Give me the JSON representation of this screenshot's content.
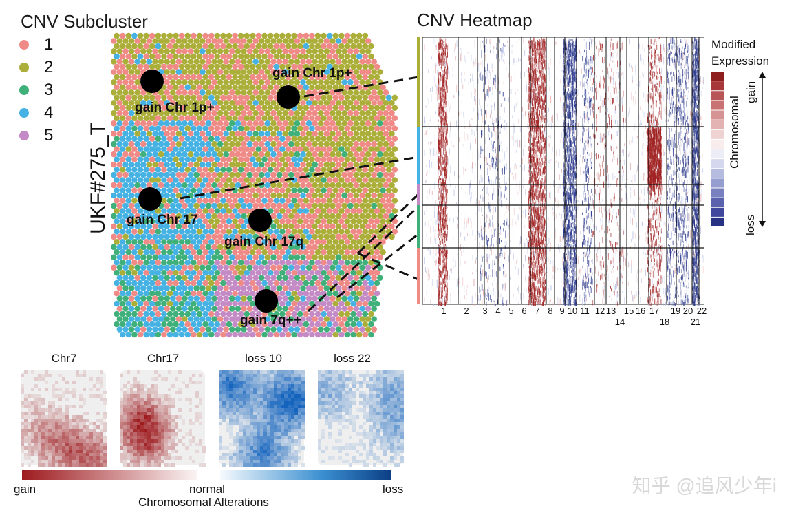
{
  "subcluster_panel": {
    "title": "CNV Subcluster",
    "sample_id": "UKF#275_T",
    "legend": [
      {
        "label": "1",
        "color": "#ef8a87"
      },
      {
        "label": "2",
        "color": "#abaf3a"
      },
      {
        "label": "3",
        "color": "#3fb07a"
      },
      {
        "label": "4",
        "color": "#45b2e3"
      },
      {
        "label": "5",
        "color": "#c48ac5"
      }
    ],
    "annotations": [
      {
        "id": "a1",
        "label": "gain Chr 1p+"
      },
      {
        "id": "a2",
        "label": "gain Chr 1p+"
      },
      {
        "id": "a3",
        "label": "gain Chr 17"
      },
      {
        "id": "a4",
        "label": "gain Chr 17q"
      },
      {
        "id": "a5",
        "label": "gain 7q++"
      }
    ]
  },
  "heatmap_panel": {
    "title": "CNV Heatmap",
    "legend_title_line1": "Modified",
    "legend_title_line2": "Expression",
    "legend_axis_label": "Chromosomal",
    "legend_gain": "gain",
    "legend_loss": "loss",
    "chromosome_labels": [
      "1",
      "2",
      "3",
      "4",
      "5",
      "6",
      "7",
      "8",
      "9",
      "10",
      "11",
      "12",
      "13",
      "14",
      "15",
      "16",
      "17",
      "18",
      "19",
      "20",
      "21",
      "22"
    ],
    "subcluster_bar_colors": [
      "#abaf3a",
      "#45b2e3",
      "#c48ac5",
      "#3fb07a",
      "#ef8a87"
    ],
    "gain_color": "#a12222",
    "loss_color": "#2c3a8c"
  },
  "small_maps": {
    "panels": [
      {
        "title": "Chr7",
        "kind": "gain"
      },
      {
        "title": "Chr17",
        "kind": "gain"
      },
      {
        "title": "loss 10",
        "kind": "loss"
      },
      {
        "title": "loss 22",
        "kind": "loss"
      }
    ],
    "colorbar_gain_label": "gain",
    "colorbar_normal_label": "normal",
    "colorbar_loss_label": "loss",
    "colorbar_title": "Chromosomal Alterations"
  },
  "watermark": "知乎 @追风少年i"
}
